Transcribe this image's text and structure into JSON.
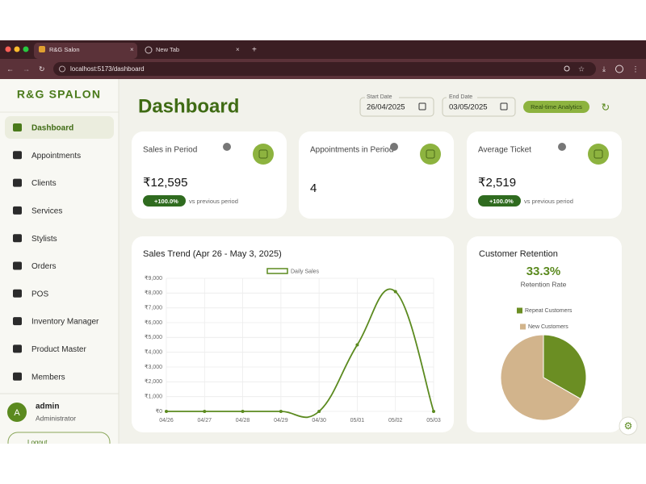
{
  "browser": {
    "tabs": [
      "R&G Salon",
      "New Tab"
    ],
    "url": "localhost:5173/dashboard"
  },
  "sidebar": {
    "brand": "R&G SPALON",
    "nav": [
      "Dashboard",
      "Appointments",
      "Clients",
      "Services",
      "Stylists",
      "Orders",
      "POS",
      "Inventory Manager",
      "Product Master",
      "Members"
    ],
    "avatar": "A",
    "user": "admin",
    "role": "Administrator",
    "logout": "Logout"
  },
  "header": {
    "title": "Dashboard",
    "start_label": "Start Date",
    "start": "26/04/2025",
    "end_label": "End Date",
    "end": "03/05/2025",
    "badge": "Real-time Analytics"
  },
  "cards": [
    {
      "label": "Sales in Period",
      "value": "₹12,595",
      "change": "+100.0%",
      "note": "vs previous period"
    },
    {
      "label": "Appointments in Period",
      "value": "4"
    },
    {
      "label": "Average Ticket",
      "value": "₹2,519",
      "change": "+100.0%",
      "note": "vs previous period"
    }
  ],
  "chart_data": [
    {
      "type": "line",
      "title": "Sales Trend (Apr 26 - May 3, 2025)",
      "categories": [
        "04/26",
        "04/27",
        "04/28",
        "04/29",
        "04/30",
        "05/01",
        "05/02",
        "05/03"
      ],
      "series": [
        {
          "name": "Daily Sales",
          "color": "#5b8a1f",
          "values": [
            0,
            0,
            0,
            0,
            0,
            4500,
            8100,
            0
          ]
        }
      ],
      "ylim": [
        0,
        9000
      ],
      "yticks": [
        {
          "value": 0,
          "label": "₹0"
        },
        {
          "value": 1000,
          "label": "₹1,000"
        },
        {
          "value": 2000,
          "label": "₹2,000"
        },
        {
          "value": 3000,
          "label": "₹3,000"
        },
        {
          "value": 4000,
          "label": "₹4,000"
        },
        {
          "value": 5000,
          "label": "₹5,000"
        },
        {
          "value": 6000,
          "label": "₹6,000"
        },
        {
          "value": 7000,
          "label": "₹7,000"
        },
        {
          "value": 8000,
          "label": "₹8,000"
        },
        {
          "value": 9000,
          "label": "₹9,000"
        }
      ],
      "grid": true,
      "legend": "top"
    },
    {
      "type": "pie",
      "title": "Customer Retention",
      "annotation": "33.3%",
      "annotation_label": "Retention Rate",
      "categories": [
        "Repeat Customers",
        "New Customers"
      ],
      "values": [
        33.3,
        66.7
      ],
      "colors": [
        "#6b8e23",
        "#d2b48c"
      ],
      "legend": "top"
    }
  ]
}
